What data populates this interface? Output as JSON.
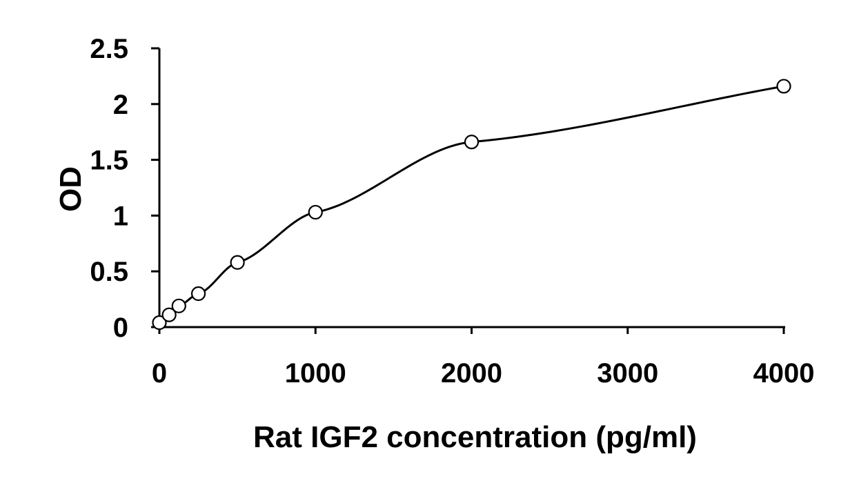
{
  "chart_data": {
    "type": "scatter",
    "title": "",
    "xlabel": "Rat IGF2 concentration (pg/ml)",
    "ylabel": "OD",
    "xlim": [
      0,
      4000
    ],
    "ylim": [
      0,
      2.5
    ],
    "x_ticks": [
      0,
      1000,
      2000,
      3000,
      4000
    ],
    "x_tick_labels": [
      "0",
      "1000",
      "2000",
      "3000",
      "4000"
    ],
    "y_ticks": [
      0,
      0.5,
      1,
      1.5,
      2,
      2.5
    ],
    "y_tick_labels": [
      "0",
      "0.5",
      "1",
      "1.5",
      "2",
      "2.5"
    ],
    "grid": false,
    "legend": "none",
    "marker": "open-circle",
    "fit_line": "smooth-curve",
    "series": [
      {
        "x": [
          0,
          62.5,
          125,
          250,
          500,
          1000,
          2000,
          4000
        ],
        "y": [
          0.04,
          0.11,
          0.19,
          0.3,
          0.58,
          1.03,
          1.66,
          2.16
        ]
      }
    ]
  }
}
